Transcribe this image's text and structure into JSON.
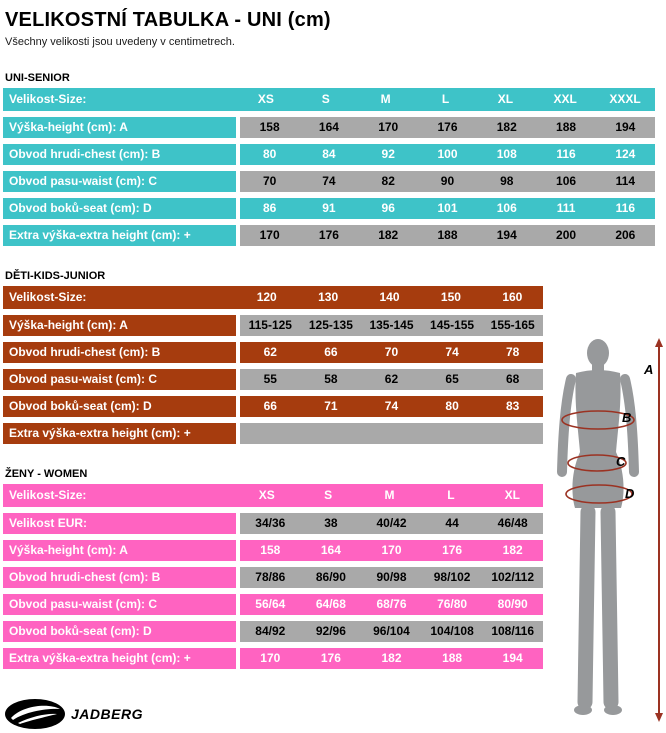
{
  "page": {
    "title": "VELIKOSTNÍ TABULKA - UNI (cm)",
    "subtitle": "Všechny velikosti jsou uvedeny v centimetrech."
  },
  "colors": {
    "uni_accent": "#3ec3c8",
    "kids_accent": "#a63c0e",
    "women_accent": "#ff63c1",
    "row_gray": "#a9a9a9",
    "arrow_red": "#9b3222",
    "figure_gray": "#97999b"
  },
  "tables": [
    {
      "id": "uni-senior",
      "section_label": "UNI-SENIOR",
      "accent": "#3ec3c8",
      "wide": true,
      "header": {
        "label": "Velikost-Size:",
        "columns": [
          "XS",
          "S",
          "M",
          "L",
          "XL",
          "XXL",
          "XXXL"
        ]
      },
      "rows": [
        {
          "label": "Výška-height (cm): A",
          "tone": "gray",
          "values": [
            "158",
            "164",
            "170",
            "176",
            "182",
            "188",
            "194"
          ]
        },
        {
          "label": "Obvod hrudi-chest (cm): B",
          "tone": "accent",
          "values": [
            "80",
            "84",
            "92",
            "100",
            "108",
            "116",
            "124"
          ]
        },
        {
          "label": "Obvod pasu-waist (cm): C",
          "tone": "gray",
          "values": [
            "70",
            "74",
            "82",
            "90",
            "98",
            "106",
            "114"
          ]
        },
        {
          "label": "Obvod boků-seat (cm): D",
          "tone": "accent",
          "values": [
            "86",
            "91",
            "96",
            "101",
            "106",
            "111",
            "116"
          ]
        },
        {
          "label": "Extra výška-extra height (cm): +",
          "tone": "gray",
          "values": [
            "170",
            "176",
            "182",
            "188",
            "194",
            "200",
            "206"
          ]
        }
      ]
    },
    {
      "id": "deti-kids-junior",
      "section_label": "DĚTI-KIDS-JUNIOR",
      "accent": "#a63c0e",
      "wide": false,
      "header": {
        "label": "Velikost-Size:",
        "columns": [
          "120",
          "130",
          "140",
          "150",
          "160"
        ]
      },
      "rows": [
        {
          "label": "Výška-height (cm): A",
          "tone": "gray",
          "values": [
            "115-125",
            "125-135",
            "135-145",
            "145-155",
            "155-165"
          ]
        },
        {
          "label": "Obvod hrudi-chest (cm): B",
          "tone": "accent",
          "values": [
            "62",
            "66",
            "70",
            "74",
            "78"
          ]
        },
        {
          "label": "Obvod pasu-waist (cm): C",
          "tone": "gray",
          "values": [
            "55",
            "58",
            "62",
            "65",
            "68"
          ]
        },
        {
          "label": "Obvod boků-seat (cm): D",
          "tone": "accent",
          "values": [
            "66",
            "71",
            "74",
            "80",
            "83"
          ]
        },
        {
          "label": "Extra výška-extra height (cm): +",
          "tone": "gray",
          "values": [
            "",
            "",
            "",
            "",
            ""
          ]
        }
      ]
    },
    {
      "id": "zeny-women",
      "section_label": "ŽENY - WOMEN",
      "accent": "#ff63c1",
      "wide": false,
      "header": {
        "label": "Velikost-Size:",
        "columns": [
          "XS",
          "S",
          "M",
          "L",
          "XL"
        ]
      },
      "rows": [
        {
          "label": "Velikost EUR:",
          "tone": "gray",
          "values": [
            "34/36",
            "38",
            "40/42",
            "44",
            "46/48"
          ]
        },
        {
          "label": "Výška-height (cm): A",
          "tone": "accent",
          "values": [
            "158",
            "164",
            "170",
            "176",
            "182"
          ]
        },
        {
          "label": "Obvod hrudi-chest (cm): B",
          "tone": "gray",
          "values": [
            "78/86",
            "86/90",
            "90/98",
            "98/102",
            "102/112"
          ]
        },
        {
          "label": "Obvod pasu-waist (cm): C",
          "tone": "accent",
          "values": [
            "56/64",
            "64/68",
            "68/76",
            "76/80",
            "80/90"
          ]
        },
        {
          "label": "Obvod boků-seat (cm): D",
          "tone": "gray",
          "values": [
            "84/92",
            "92/96",
            "96/104",
            "104/108",
            "108/116"
          ]
        },
        {
          "label": "Extra výška-extra height (cm): +",
          "tone": "accent",
          "values": [
            "170",
            "176",
            "182",
            "188",
            "194"
          ]
        }
      ]
    }
  ],
  "figure": {
    "labels": {
      "height": "A",
      "chest": "B",
      "waist": "C",
      "seat": "D"
    }
  },
  "logo": {
    "text": "JADBERG"
  }
}
